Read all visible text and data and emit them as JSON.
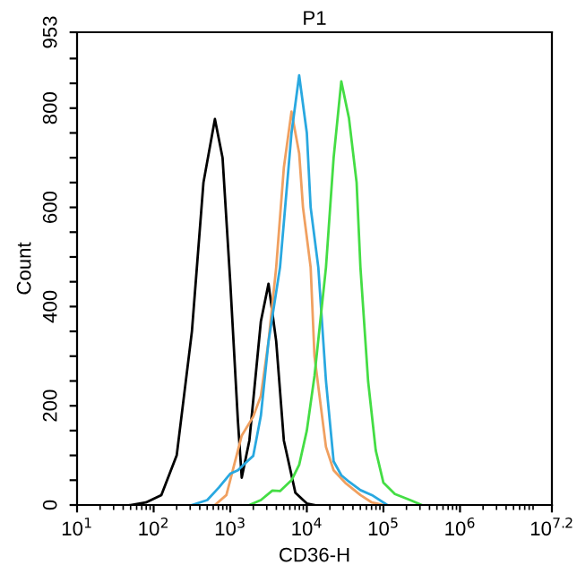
{
  "chart_data": {
    "type": "line",
    "title": "P1",
    "xlabel": "CD36-H",
    "ylabel": "Count",
    "log": "x",
    "xlim": [
      10,
      15848932
    ],
    "xticks": [
      {
        "value": 10,
        "label": "10$^{1}$"
      },
      {
        "value": 100,
        "label": "10$^{2}$"
      },
      {
        "value": 1000,
        "label": "10$^{3}$"
      },
      {
        "value": 10000,
        "label": "10$^{4}$"
      },
      {
        "value": 100000,
        "label": "10$^{5}$"
      },
      {
        "value": 1000000,
        "label": "10$^{6}$"
      },
      {
        "value": 15848932,
        "label": "10$^{7.2}$"
      }
    ],
    "ylim": [
      0,
      953
    ],
    "yticks": [
      0,
      {
        "value": 50,
        "label": null
      },
      {
        "value": 100,
        "label": null
      },
      {
        "value": 150,
        "label": null
      },
      200,
      {
        "value": 250,
        "label": null
      },
      {
        "value": 300,
        "label": null
      },
      {
        "value": 350,
        "label": null
      },
      400,
      {
        "value": 450,
        "label": null
      },
      {
        "value": 500,
        "label": null
      },
      {
        "value": 550,
        "label": null
      },
      600,
      {
        "value": 650,
        "label": null
      },
      {
        "value": 700,
        "label": null
      },
      {
        "value": 750,
        "label": null
      },
      800,
      {
        "value": 850,
        "label": null
      },
      {
        "value": 900,
        "label": null
      },
      953
    ],
    "grid": false,
    "marker": "none",
    "line_style": "solid",
    "series": [
      {
        "color": "#000000",
        "x": [
          50,
          79,
          126,
          200,
          316,
          447,
          631,
          794,
          1000,
          1259,
          1413,
          1778,
          2512,
          3162,
          3981,
          5012,
          7079,
          10000,
          12589
        ],
        "values": [
          0,
          5,
          20,
          100,
          350,
          650,
          778,
          700,
          450,
          170,
          55,
          130,
          370,
          446,
          330,
          130,
          25,
          3,
          0
        ]
      },
      {
        "color": "#f0a060",
        "x": [
          631,
          891,
          1122,
          1413,
          1995,
          2512,
          3162,
          3981,
          5012,
          6310,
          7943,
          8913,
          11220,
          12589,
          17783,
          22387,
          31623,
          50119,
          70795,
          100000
        ],
        "values": [
          0,
          20,
          80,
          140,
          178,
          220,
          330,
          479,
          680,
          793,
          709,
          600,
          479,
          300,
          117,
          70,
          45,
          20,
          5,
          0
        ]
      },
      {
        "color": "#29a8e0",
        "x": [
          316,
          501,
          708,
          1000,
          1259,
          1585,
          1995,
          2512,
          3162,
          4467,
          6310,
          7943,
          10000,
          11220,
          14125,
          17783,
          22387,
          28184,
          35481,
          50119,
          70795,
          112202
        ],
        "values": [
          0,
          10,
          35,
          63,
          70,
          85,
          99,
          180,
          330,
          479,
          750,
          866,
          750,
          600,
          479,
          250,
          88,
          60,
          47,
          30,
          20,
          0
        ]
      },
      {
        "color": "#44dd44",
        "x": [
          1778,
          2512,
          3548,
          4467,
          6310,
          7943,
          10000,
          12589,
          17783,
          22387,
          28184,
          35481,
          44668,
          50119,
          63096,
          79433,
          100000,
          141254,
          223872,
          316228
        ],
        "values": [
          0,
          10,
          29,
          28,
          50,
          81,
          150,
          260,
          479,
          700,
          854,
          780,
          650,
          479,
          250,
          110,
          45,
          22,
          10,
          0
        ]
      }
    ]
  }
}
